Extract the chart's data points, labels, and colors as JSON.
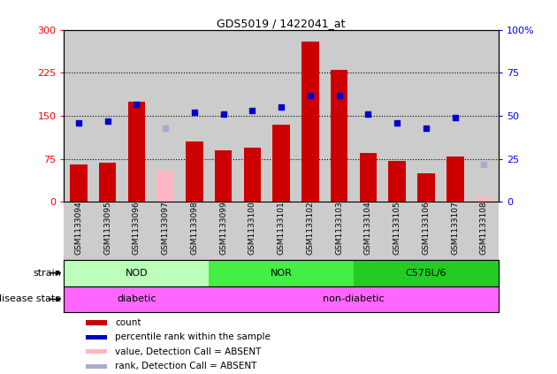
{
  "title": "GDS5019 / 1422041_at",
  "samples": [
    "GSM1133094",
    "GSM1133095",
    "GSM1133096",
    "GSM1133097",
    "GSM1133098",
    "GSM1133099",
    "GSM1133100",
    "GSM1133101",
    "GSM1133102",
    "GSM1133103",
    "GSM1133104",
    "GSM1133105",
    "GSM1133106",
    "GSM1133107",
    "GSM1133108"
  ],
  "counts": [
    65,
    68,
    175,
    null,
    105,
    90,
    95,
    135,
    280,
    230,
    85,
    72,
    50,
    80,
    null
  ],
  "counts_absent": [
    null,
    null,
    null,
    55,
    null,
    null,
    null,
    null,
    null,
    null,
    null,
    null,
    null,
    null,
    8
  ],
  "percentile": [
    46,
    47,
    57,
    null,
    52,
    51,
    53,
    55,
    62,
    62,
    51,
    46,
    43,
    49,
    null
  ],
  "percentile_absent": [
    null,
    null,
    null,
    43,
    null,
    null,
    null,
    null,
    null,
    null,
    null,
    null,
    null,
    null,
    22
  ],
  "ylim_left": [
    0,
    300
  ],
  "yticks_left": [
    0,
    75,
    150,
    225,
    300
  ],
  "ytick_labels_left": [
    "0",
    "75",
    "150",
    "225",
    "300"
  ],
  "yticks_right": [
    0,
    25,
    50,
    75,
    100
  ],
  "ytick_labels_right": [
    "0",
    "25",
    "50",
    "75",
    "100%"
  ],
  "bar_color": "#CC0000",
  "bar_absent_color": "#FFB6C1",
  "dot_color": "#0000CC",
  "dot_absent_color": "#AAAACC",
  "col_bg_color": "#BBBBBB",
  "groups_strain": [
    {
      "label": "NOD",
      "start": 0,
      "end": 4,
      "color": "#BBFFBB"
    },
    {
      "label": "NOR",
      "start": 5,
      "end": 9,
      "color": "#44EE44"
    },
    {
      "label": "C57BL/6",
      "start": 10,
      "end": 14,
      "color": "#22CC22"
    }
  ],
  "groups_disease": [
    {
      "label": "diabetic",
      "start": 0,
      "end": 4,
      "color": "#FF66FF"
    },
    {
      "label": "non-diabetic",
      "start": 5,
      "end": 14,
      "color": "#FF66FF"
    }
  ],
  "legend_items": [
    {
      "label": "count",
      "color": "#CC0000"
    },
    {
      "label": "percentile rank within the sample",
      "color": "#0000CC"
    },
    {
      "label": "value, Detection Call = ABSENT",
      "color": "#FFB6C1"
    },
    {
      "label": "rank, Detection Call = ABSENT",
      "color": "#AAAACC"
    }
  ]
}
